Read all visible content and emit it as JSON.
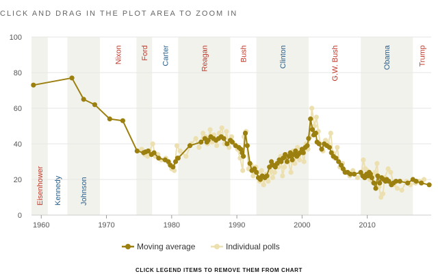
{
  "header": {
    "instruction": "CLICK AND DRAG IN THE PLOT AREA TO ZOOM IN"
  },
  "footer": {
    "instruction": "CLICK LEGEND ITEMS TO REMOVE THEM FROM CHART"
  },
  "colors": {
    "moving_average": "#9b7f0f",
    "individual_polls": "#ede0b0",
    "band": "#f2f2ec",
    "republican": "#c0392b",
    "democrat": "#2c5f8a"
  },
  "chart_data": {
    "type": "line",
    "xlabel": "",
    "ylabel": "",
    "xlim": [
      1958.5,
      2019.8
    ],
    "ylim": [
      0,
      100
    ],
    "x_ticks": [
      1960,
      1970,
      1980,
      1990,
      2000,
      2010
    ],
    "y_ticks": [
      0,
      20,
      40,
      60,
      80,
      100
    ],
    "grid": true,
    "legend_position": "bottom-center",
    "presidents": [
      {
        "name": "Eisenhower",
        "party": "R",
        "start": 1958.5,
        "end": 1961.0,
        "shaded": true
      },
      {
        "name": "Kennedy",
        "party": "D",
        "start": 1961.0,
        "end": 1964.0,
        "shaded": false
      },
      {
        "name": "Johnson",
        "party": "D",
        "start": 1964.0,
        "end": 1969.0,
        "shaded": true
      },
      {
        "name": "Nixon",
        "party": "R",
        "start": 1969.0,
        "end": 1974.6,
        "shaded": false
      },
      {
        "name": "Ford",
        "party": "R",
        "start": 1974.6,
        "end": 1977.0,
        "shaded": true
      },
      {
        "name": "Carter",
        "party": "D",
        "start": 1977.0,
        "end": 1981.0,
        "shaded": false
      },
      {
        "name": "Reagan",
        "party": "R",
        "start": 1981.0,
        "end": 1989.0,
        "shaded": true
      },
      {
        "name": "Bush",
        "party": "R",
        "start": 1989.0,
        "end": 1993.0,
        "shaded": false
      },
      {
        "name": "Clinton",
        "party": "D",
        "start": 1993.0,
        "end": 2001.0,
        "shaded": true
      },
      {
        "name": "G.W. Bush",
        "party": "R",
        "start": 2001.0,
        "end": 2009.0,
        "shaded": false
      },
      {
        "name": "Obama",
        "party": "D",
        "start": 2009.0,
        "end": 2017.0,
        "shaded": true
      },
      {
        "name": "Trump",
        "party": "R",
        "start": 2017.0,
        "end": 2019.8,
        "shaded": false
      }
    ],
    "series": [
      {
        "name": "Moving average",
        "x": [
          1958.8,
          1964.7,
          1966.5,
          1968.2,
          1970.5,
          1972.5,
          1974.7,
          1975.7,
          1976.0,
          1976.4,
          1976.9,
          1977.3,
          1978.0,
          1979.0,
          1979.5,
          1979.8,
          1980.2,
          1980.6,
          1980.9,
          1981.0,
          1982.8,
          1984.5,
          1985.1,
          1985.4,
          1985.6,
          1986.0,
          1986.4,
          1986.8,
          1987.2,
          1987.6,
          1988.0,
          1988.5,
          1989.0,
          1989.3,
          1989.8,
          1990.3,
          1990.6,
          1990.8,
          1991.0,
          1991.3,
          1991.6,
          1992.0,
          1992.3,
          1992.7,
          1993.0,
          1993.3,
          1993.6,
          1993.9,
          1994.3,
          1994.6,
          1995.0,
          1995.3,
          1995.6,
          1995.9,
          1996.2,
          1996.5,
          1996.8,
          1997.1,
          1997.4,
          1997.7,
          1998.0,
          1998.2,
          1998.5,
          1998.7,
          1999.0,
          1999.2,
          1999.4,
          1999.7,
          2000.0,
          2000.2,
          2000.5,
          2000.8,
          2001.0,
          2001.3,
          2001.6,
          2001.8,
          2002.1,
          2002.3,
          2002.6,
          2003.0,
          2003.4,
          2003.8,
          2004.2,
          2004.5,
          2004.8,
          2005.2,
          2005.6,
          2006.0,
          2006.3,
          2006.6,
          2007.0,
          2007.4,
          2008.0,
          2009.0,
          2009.3,
          2009.6,
          2009.9,
          2010.1,
          2010.3,
          2010.5,
          2010.7,
          2011.0,
          2011.3,
          2011.6,
          2011.9,
          2012.2,
          2012.5,
          2012.8,
          2013.0,
          2013.3,
          2013.7,
          2014.0,
          2014.4,
          2015.0,
          2016.2,
          2017.0,
          2017.5,
          2018.3,
          2019.5
        ],
        "y": [
          73,
          77,
          65,
          62,
          54,
          53,
          36,
          35,
          35.5,
          36,
          34,
          35,
          32,
          31,
          30,
          28,
          27,
          30,
          32,
          32,
          39,
          41,
          43,
          41,
          42,
          44,
          43,
          42,
          43,
          44,
          43,
          40,
          42,
          41,
          39,
          38,
          37,
          35,
          33,
          46,
          39,
          29,
          25,
          26,
          24,
          21,
          20,
          22,
          21,
          22,
          27,
          30,
          28,
          27,
          29,
          31,
          30,
          32,
          34,
          30,
          33,
          35,
          31,
          34,
          36,
          33,
          34,
          35,
          37,
          35,
          38,
          39,
          43,
          54,
          48,
          45,
          46,
          41,
          40,
          37,
          40,
          39,
          38,
          35,
          33,
          32,
          30,
          28,
          26,
          24,
          24,
          23,
          23,
          24,
          22,
          21,
          23,
          22,
          24,
          23,
          21,
          18,
          15,
          22,
          18,
          21,
          20,
          19,
          20,
          19,
          17,
          18,
          19,
          19,
          18,
          20,
          19,
          18,
          17
        ]
      },
      {
        "name": "Individual polls",
        "x": [
          1975.4,
          1975.9,
          1976.3,
          1976.6,
          1977.1,
          1977.5,
          1977.9,
          1978.4,
          1979.1,
          1979.6,
          1980.0,
          1980.4,
          1980.8,
          1981.3,
          1982.2,
          1983.0,
          1983.7,
          1984.2,
          1984.8,
          1985.2,
          1985.5,
          1985.9,
          1986.2,
          1986.5,
          1986.9,
          1987.3,
          1987.7,
          1988.1,
          1988.4,
          1988.8,
          1989.2,
          1989.6,
          1990.1,
          1990.5,
          1990.9,
          1991.1,
          1991.4,
          1991.8,
          1992.2,
          1992.5,
          1992.9,
          1993.2,
          1993.5,
          1993.8,
          1994.1,
          1994.5,
          1994.8,
          1995.2,
          1995.5,
          1995.8,
          1996.1,
          1996.4,
          1996.7,
          1997.0,
          1997.3,
          1997.6,
          1997.9,
          1998.3,
          1998.6,
          1998.9,
          1999.3,
          1999.6,
          1999.9,
          2000.3,
          2000.6,
          2000.9,
          2001.2,
          2001.5,
          2001.9,
          2002.2,
          2002.5,
          2002.8,
          2003.2,
          2003.6,
          2004.0,
          2004.4,
          2004.7,
          2005.0,
          2005.4,
          2005.8,
          2006.2,
          2006.5,
          2006.9,
          2007.3,
          2007.8,
          2008.5,
          2009.1,
          2009.4,
          2009.7,
          2010.0,
          2010.4,
          2010.8,
          2011.2,
          2011.5,
          2011.8,
          2012.1,
          2012.4,
          2012.7,
          2013.2,
          2013.6,
          2014.1,
          2014.6,
          2015.3,
          2016.0,
          2016.6,
          2017.4,
          2018.0,
          2018.7
        ],
        "y": [
          37,
          34,
          33,
          36,
          40,
          33,
          34,
          31,
          32,
          29,
          26,
          25,
          39,
          36,
          33,
          40,
          43,
          38,
          46,
          44,
          40,
          48,
          41,
          45,
          39,
          46,
          49,
          40,
          47,
          38,
          44,
          40,
          37,
          32,
          25,
          44,
          47,
          26,
          28,
          22,
          27,
          24,
          19,
          25,
          17,
          23,
          19,
          25,
          21,
          24,
          29,
          27,
          33,
          22,
          27,
          34,
          30,
          24,
          36,
          29,
          38,
          31,
          36,
          30,
          40,
          37,
          44,
          60,
          50,
          55,
          47,
          40,
          36,
          42,
          40,
          46,
          35,
          32,
          38,
          27,
          29,
          25,
          24,
          22,
          25,
          21,
          23,
          31,
          26,
          25,
          20,
          19,
          24,
          29,
          16,
          10,
          12,
          21,
          26,
          24,
          17,
          15,
          14,
          19,
          17,
          18,
          19,
          20
        ]
      }
    ]
  }
}
